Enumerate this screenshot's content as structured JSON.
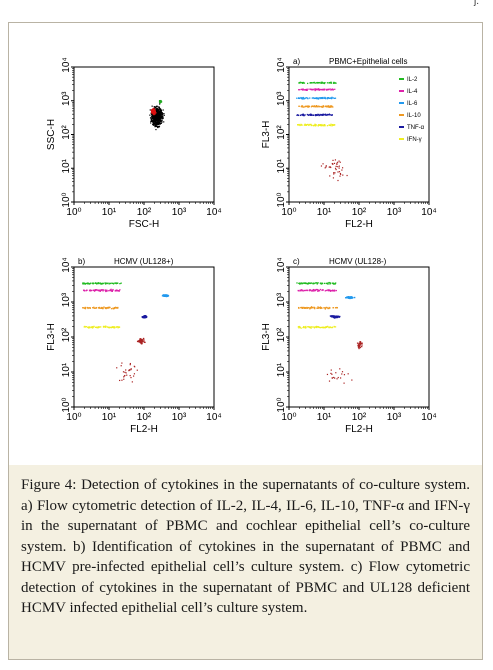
{
  "header_mark": "j.",
  "panels": [
    {
      "id": "scatter",
      "corner_label": "",
      "title": "",
      "xlabel": "FSC-H",
      "ylabel": "SSC-H",
      "xticks": [
        "10⁰",
        "10¹",
        "10²",
        "10³",
        "10⁴"
      ],
      "yticks": [
        "10⁰",
        "10¹",
        "10²",
        "10³",
        "10⁴"
      ],
      "legend": []
    },
    {
      "id": "a",
      "corner_label": "a)",
      "title": "PBMC+Epithelial cells",
      "xlabel": "FL2-H",
      "ylabel": "FL3-H",
      "xticks": [
        "10⁰",
        "10¹",
        "10²",
        "10³",
        "10⁴"
      ],
      "yticks": [
        "10⁰",
        "10¹",
        "10²",
        "10³",
        "10⁴"
      ],
      "legend": [
        {
          "label": "IL-2",
          "color": "#22bb22"
        },
        {
          "label": "IL-4",
          "color": "#dd22aa"
        },
        {
          "label": "IL-6",
          "color": "#2299ee"
        },
        {
          "label": "IL-10",
          "color": "#ee9922"
        },
        {
          "label": "TNF-α",
          "color": "#1a1aa0"
        },
        {
          "label": "IFN-γ",
          "color": "#eeee22"
        }
      ]
    },
    {
      "id": "b",
      "corner_label": "b)",
      "title": "HCMV (UL128+)",
      "xlabel": "FL2-H",
      "ylabel": "FL3-H",
      "xticks": [
        "10⁰",
        "10¹",
        "10²",
        "10³",
        "10⁴"
      ],
      "yticks": [
        "10⁰",
        "10¹",
        "10²",
        "10³",
        "10⁴"
      ],
      "legend": []
    },
    {
      "id": "c",
      "corner_label": "c)",
      "title": "HCMV (UL128-)",
      "xlabel": "FL2-H",
      "ylabel": "FL3-H",
      "xticks": [
        "10⁰",
        "10¹",
        "10²",
        "10³",
        "10⁴"
      ],
      "yticks": [
        "10⁰",
        "10¹",
        "10²",
        "10³",
        "10⁴"
      ],
      "legend": []
    }
  ],
  "caption": {
    "label": "Figure 4:",
    "text": " Detection of cytokines in the supernatants of co-culture system. a) Flow cytometric detection of IL-2, IL-4, IL-6, IL-10, TNF-α and IFN-γ in the supernatant of PBMC and cochlear epithelial cell’s co-culture system. b) Identification of cytokines in the supernatant of PBMC and HCMV pre-infected epithelial cell’s culture system. c) Flow cytometric detection of cytokines in the supernatant of PBMC and UL128 deficient HCMV infected epithelial cell’s culture system."
  },
  "colors": {
    "background_caption": "#f4f0e1",
    "IL-2": "#22bb22",
    "IL-4": "#dd22aa",
    "IL-6": "#2299ee",
    "IL-10": "#ee9922",
    "TNF-a": "#1a1aa0",
    "IFN-g": "#eeee22",
    "scatter_dots": "#000000",
    "gate": "#dd1111",
    "debris": "#aa2222"
  }
}
